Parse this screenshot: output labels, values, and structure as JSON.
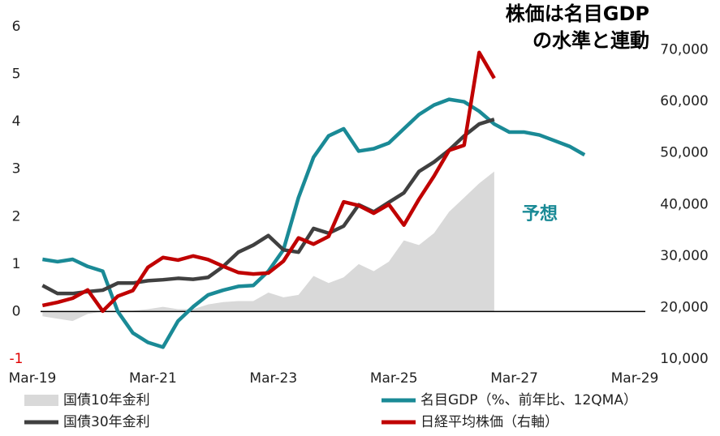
{
  "chart_data": {
    "type": "line",
    "title": [
      "株価は名目GDP",
      "の水準と連動"
    ],
    "annotation": {
      "text": "予想",
      "color": "#1a8a96"
    },
    "x": [
      2,
      5,
      8,
      11,
      14,
      17,
      20,
      23,
      26,
      29,
      32,
      35,
      38,
      41,
      44,
      47,
      50,
      53,
      56,
      59,
      62,
      65,
      68,
      71,
      74,
      77,
      80,
      83,
      86,
      89,
      92,
      95,
      98,
      101,
      104,
      107,
      110
    ],
    "xlim": [
      0,
      120
    ],
    "xticks": [
      {
        "value": 0,
        "label": "Mar-19"
      },
      {
        "value": 24,
        "label": "Mar-21"
      },
      {
        "value": 48,
        "label": "Mar-23"
      },
      {
        "value": 72,
        "label": "Mar-25"
      },
      {
        "value": 96,
        "label": "Mar-27"
      },
      {
        "value": 120,
        "label": "Mar-29"
      }
    ],
    "ylim": [
      -1,
      6
    ],
    "yticks": [
      -1,
      0,
      1,
      2,
      3,
      4,
      5,
      6
    ],
    "negative_label_color": "#e00000",
    "y2lim": [
      10000,
      74500
    ],
    "y2ticks": [
      {
        "value": 10000,
        "label": "10,000"
      },
      {
        "value": 20000,
        "label": "20,000"
      },
      {
        "value": 30000,
        "label": "30,000"
      },
      {
        "value": 40000,
        "label": "40,000"
      },
      {
        "value": 50000,
        "label": "50,000"
      },
      {
        "value": 60000,
        "label": "60,000"
      },
      {
        "value": 70000,
        "label": "70,000"
      }
    ],
    "series": [
      {
        "name": "国債10年金利",
        "type": "area",
        "color": "#d9d9d9",
        "values": [
          -0.1,
          -0.15,
          -0.2,
          -0.05,
          0,
          0.02,
          0.02,
          0.05,
          0.1,
          0.05,
          0.05,
          0.15,
          0.2,
          0.22,
          0.22,
          0.4,
          0.3,
          0.35,
          0.75,
          0.6,
          0.72,
          1.0,
          0.85,
          1.05,
          1.5,
          1.4,
          1.65,
          2.1,
          2.4,
          2.7,
          2.95,
          null,
          null,
          null,
          null,
          null,
          null
        ]
      },
      {
        "name": "名目GDP（%、前年比、12QMA）",
        "type": "line",
        "color": "#1a8a96",
        "values": [
          1.1,
          1.05,
          1.1,
          0.95,
          0.85,
          0.0,
          -0.45,
          -0.65,
          -0.75,
          -0.2,
          0.1,
          0.35,
          0.45,
          0.53,
          0.55,
          0.85,
          1.3,
          2.4,
          3.25,
          3.7,
          3.85,
          3.38,
          3.43,
          3.55,
          3.85,
          4.15,
          4.35,
          4.47,
          4.42,
          4.22,
          3.95,
          3.78,
          3.78,
          3.72,
          3.6,
          3.48,
          3.3
        ]
      },
      {
        "name": "国債30年金利",
        "type": "line",
        "color": "#404040",
        "values": [
          0.55,
          0.38,
          0.38,
          0.42,
          0.45,
          0.6,
          0.6,
          0.65,
          0.67,
          0.7,
          0.68,
          0.72,
          0.95,
          1.25,
          1.4,
          1.6,
          1.3,
          1.25,
          1.75,
          1.65,
          1.8,
          2.25,
          2.1,
          2.3,
          2.5,
          2.95,
          3.15,
          3.4,
          3.7,
          3.95,
          4.05,
          null,
          null,
          null,
          null,
          null,
          null
        ]
      },
      {
        "name": "日経平均株価（右軸）",
        "type": "line",
        "color": "#c00000",
        "axis": "y2",
        "values": [
          20400,
          21000,
          21800,
          23400,
          19300,
          22200,
          23300,
          27800,
          29700,
          29200,
          30000,
          29300,
          28000,
          26800,
          26500,
          26700,
          29000,
          33500,
          32300,
          33800,
          40500,
          39800,
          38300,
          40000,
          36000,
          41000,
          45500,
          50500,
          51500,
          69500,
          64500,
          null,
          null,
          null,
          null,
          null,
          null
        ]
      }
    ]
  }
}
